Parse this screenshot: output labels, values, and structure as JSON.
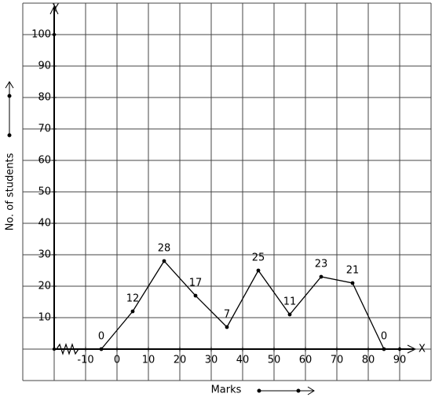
{
  "chart_data": {
    "type": "line",
    "x_label": "Marks",
    "y_label": "No. of students",
    "x_axis_letter": "X",
    "y_axis_letter": "Y",
    "x": [
      -5,
      5,
      15,
      25,
      35,
      45,
      55,
      65,
      75,
      85
    ],
    "values": [
      0,
      12,
      28,
      17,
      7,
      25,
      11,
      23,
      21,
      0
    ],
    "color": "#000000",
    "xlim": [
      -30,
      100
    ],
    "ylim": [
      -10,
      110
    ],
    "xticks": [
      -10,
      0,
      10,
      20,
      30,
      40,
      50,
      60,
      70,
      80,
      90
    ],
    "yticks": [
      10,
      20,
      30,
      40,
      50,
      60,
      70,
      80,
      90,
      100
    ],
    "grid": true
  }
}
